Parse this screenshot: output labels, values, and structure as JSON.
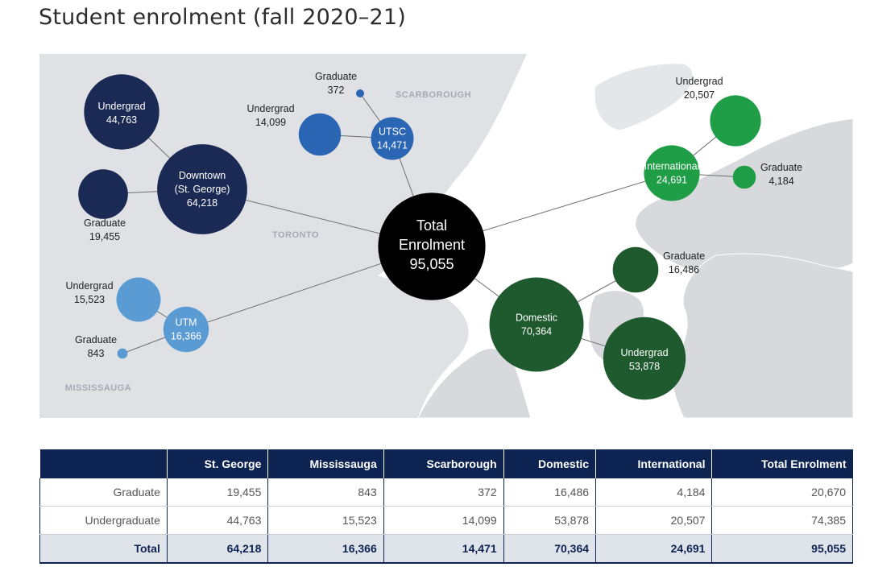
{
  "title": "Student enrolment (fall 2020–21)",
  "map_labels": {
    "toronto": "TORONTO",
    "scarborough": "SCARBOROUGH",
    "mississauga": "MISSISSAUGA"
  },
  "colors": {
    "st_george": "#1b2a55",
    "utsc": "#2b66b5",
    "utm": "#5b9bd4",
    "international": "#1f9e47",
    "domestic": "#1e5a2e",
    "total": "#000000",
    "map_land": "#dfe1e5",
    "header": "#0d2453"
  },
  "chart_data": {
    "type": "bubble-network",
    "title": "Student enrolment (fall 2020–21)",
    "total": {
      "label": "Total Enrolment",
      "value": 95055,
      "display": "95,055"
    },
    "groups": [
      {
        "id": "st_george",
        "name": "Downtown (St. George)",
        "display": "64,218",
        "value": 64218,
        "children": [
          {
            "label": "Undergrad",
            "value": 44763,
            "display": "44,763"
          },
          {
            "label": "Graduate",
            "value": 19455,
            "display": "19,455"
          }
        ]
      },
      {
        "id": "utsc",
        "name": "UTSC",
        "display": "14,471",
        "value": 14471,
        "children": [
          {
            "label": "Undergrad",
            "value": 14099,
            "display": "14,099"
          },
          {
            "label": "Graduate",
            "value": 372,
            "display": "372"
          }
        ]
      },
      {
        "id": "utm",
        "name": "UTM",
        "display": "16,366",
        "value": 16366,
        "children": [
          {
            "label": "Undergrad",
            "value": 15523,
            "display": "15,523"
          },
          {
            "label": "Graduate",
            "value": 843,
            "display": "843"
          }
        ]
      },
      {
        "id": "international",
        "name": "International",
        "display": "24,691",
        "value": 24691,
        "children": [
          {
            "label": "Undergrad",
            "value": 20507,
            "display": "20,507"
          },
          {
            "label": "Graduate",
            "value": 4184,
            "display": "4,184"
          }
        ]
      },
      {
        "id": "domestic",
        "name": "Domestic",
        "display": "70,364",
        "value": 70364,
        "children": [
          {
            "label": "Graduate",
            "value": 16486,
            "display": "16,486"
          },
          {
            "label": "Undergrad",
            "value": 53878,
            "display": "53,878"
          }
        ]
      }
    ]
  },
  "table": {
    "headers": [
      "",
      "St. George",
      "Mississauga",
      "Scarborough",
      "Domestic",
      "International",
      "Total Enrolment"
    ],
    "rows": [
      [
        "Graduate",
        "19,455",
        "843",
        "372",
        "16,486",
        "4,184",
        "20,670"
      ],
      [
        "Undergraduate",
        "44,763",
        "15,523",
        "14,099",
        "53,878",
        "20,507",
        "74,385"
      ]
    ],
    "total_row": [
      "Total",
      "64,218",
      "16,366",
      "14,471",
      "70,364",
      "24,691",
      "95,055"
    ]
  }
}
